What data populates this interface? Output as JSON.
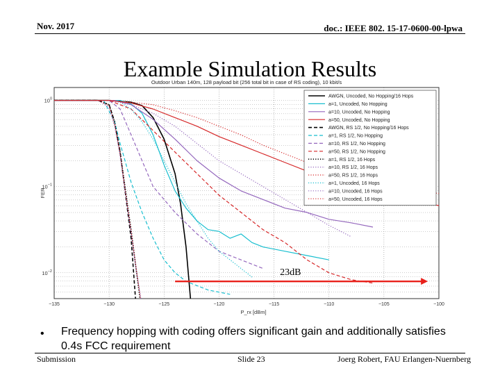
{
  "header": {
    "date": "Nov. 2017",
    "doc_id": "doc.: IEEE 802. 15-17-0600-00-lpwa"
  },
  "slide": {
    "title": "Example Simulation Results",
    "bullet": "Frequency hopping with coding offers significant gain and additionally satisfies 0.4s FCC requirement"
  },
  "footer": {
    "left": "Submission",
    "center": "Slide 23",
    "right": "Joerg Robert, FAU Erlangen-Nuernberg"
  },
  "annotation": {
    "label": "23dB",
    "from_x": -124,
    "to_x": -101
  },
  "colors": {
    "black": "#000000",
    "cyan": "#17becf",
    "purple": "#9467bd",
    "red": "#d62728",
    "annotation": "#e8201a"
  },
  "chart_data": {
    "type": "line",
    "title": "Outdoor Urban 140m, 128 payload bit (256 total bit in case of RS coding), 10 kbit/s",
    "xlabel": "P_rx [dBm]",
    "ylabel": "FER",
    "xlim": [
      -135,
      -100
    ],
    "ylog10": [
      -2.3,
      0.15
    ],
    "x_ticks": [
      -135,
      -130,
      -125,
      -120,
      -115,
      -110,
      -105,
      -100
    ],
    "y_ticks": [
      {
        "exp": 0,
        "label": "10^0"
      },
      {
        "exp": -1,
        "label": "10^-1"
      },
      {
        "exp": -2,
        "label": "10^-2"
      }
    ],
    "grid": true,
    "legend_position": "top-right",
    "series": [
      {
        "name": "AWGN, Uncoded, No Hopping/16 Hops",
        "color": "black",
        "dash": "solid",
        "points": [
          [
            -135,
            0
          ],
          [
            -130,
            0
          ],
          [
            -128,
            -0.02
          ],
          [
            -127,
            -0.06
          ],
          [
            -126,
            -0.2
          ],
          [
            -125,
            -0.45
          ],
          [
            -124,
            -0.85
          ],
          [
            -123.5,
            -1.2
          ],
          [
            -123,
            -1.7
          ],
          [
            -122.6,
            -2.3
          ]
        ]
      },
      {
        "name": "a=1, Uncoded, No Hopping",
        "color": "cyan",
        "dash": "solid",
        "points": [
          [
            -135,
            0
          ],
          [
            -129,
            0
          ],
          [
            -128,
            -0.04
          ],
          [
            -127,
            -0.15
          ],
          [
            -126,
            -0.4
          ],
          [
            -125,
            -0.75
          ],
          [
            -124,
            -1.05
          ],
          [
            -123,
            -1.25
          ],
          [
            -122,
            -1.4
          ],
          [
            -121,
            -1.5
          ],
          [
            -120,
            -1.52
          ],
          [
            -119,
            -1.6
          ],
          [
            -118,
            -1.55
          ],
          [
            -117,
            -1.65
          ],
          [
            -116,
            -1.7
          ],
          [
            -114,
            -1.75
          ],
          [
            -112,
            -1.8
          ],
          [
            -110,
            -1.85
          ]
        ]
      },
      {
        "name": "a=10, Uncoded, No Hopping",
        "color": "purple",
        "dash": "solid",
        "points": [
          [
            -135,
            0
          ],
          [
            -129.5,
            0
          ],
          [
            -128,
            -0.05
          ],
          [
            -126,
            -0.22
          ],
          [
            -124,
            -0.45
          ],
          [
            -122,
            -0.7
          ],
          [
            -120,
            -0.9
          ],
          [
            -118,
            -1.05
          ],
          [
            -116,
            -1.15
          ],
          [
            -114,
            -1.25
          ],
          [
            -112,
            -1.3
          ],
          [
            -110,
            -1.38
          ],
          [
            -108,
            -1.42
          ],
          [
            -106,
            -1.47
          ]
        ]
      },
      {
        "name": "a=50, Uncoded, No Hopping",
        "color": "red",
        "dash": "solid",
        "points": [
          [
            -135,
            0
          ],
          [
            -130,
            0
          ],
          [
            -128,
            -0.03
          ],
          [
            -126,
            -0.1
          ],
          [
            -124,
            -0.2
          ],
          [
            -122,
            -0.3
          ],
          [
            -120,
            -0.42
          ],
          [
            -118,
            -0.52
          ],
          [
            -116,
            -0.62
          ],
          [
            -114,
            -0.72
          ],
          [
            -112,
            -0.82
          ],
          [
            -110,
            -0.9
          ],
          [
            -108,
            -0.98
          ],
          [
            -106,
            -1.05
          ],
          [
            -104,
            -1.12
          ],
          [
            -102,
            -1.18
          ],
          [
            -100,
            -1.22
          ]
        ]
      },
      {
        "name": "AWGN, RS 1/2, No Hopping/16 Hops",
        "color": "black",
        "dash": "dashed",
        "points": [
          [
            -135,
            0
          ],
          [
            -131,
            0
          ],
          [
            -130,
            -0.05
          ],
          [
            -129.5,
            -0.25
          ],
          [
            -129,
            -0.6
          ],
          [
            -128.5,
            -1.1
          ],
          [
            -128,
            -1.6
          ],
          [
            -127.6,
            -2.3
          ]
        ]
      },
      {
        "name": "a=1, RS 1/2, No Hopping",
        "color": "cyan",
        "dash": "dashed",
        "points": [
          [
            -135,
            0
          ],
          [
            -130.5,
            0
          ],
          [
            -129.5,
            -0.25
          ],
          [
            -129,
            -0.5
          ],
          [
            -128,
            -0.95
          ],
          [
            -127,
            -1.3
          ],
          [
            -126,
            -1.6
          ],
          [
            -125,
            -1.85
          ],
          [
            -124,
            -2.0
          ],
          [
            -123,
            -2.1
          ],
          [
            -121,
            -2.2
          ],
          [
            -119,
            -2.25
          ]
        ]
      },
      {
        "name": "a=10, RS 1/2, No Hopping",
        "color": "purple",
        "dash": "dashed",
        "points": [
          [
            -135,
            0
          ],
          [
            -130,
            0
          ],
          [
            -129,
            -0.1
          ],
          [
            -128,
            -0.4
          ],
          [
            -127,
            -0.7
          ],
          [
            -126,
            -1.0
          ],
          [
            -124,
            -1.3
          ],
          [
            -122,
            -1.55
          ],
          [
            -120,
            -1.75
          ],
          [
            -118,
            -1.85
          ],
          [
            -116,
            -1.95
          ]
        ]
      },
      {
        "name": "a=50, RS 1/2, No Hopping",
        "color": "red",
        "dash": "dashed",
        "points": [
          [
            -135,
            0
          ],
          [
            -130,
            0
          ],
          [
            -128,
            -0.1
          ],
          [
            -126,
            -0.35
          ],
          [
            -124,
            -0.6
          ],
          [
            -122,
            -0.85
          ],
          [
            -120,
            -1.1
          ],
          [
            -118,
            -1.3
          ],
          [
            -116,
            -1.5
          ],
          [
            -114,
            -1.65
          ],
          [
            -112,
            -1.85
          ],
          [
            -110,
            -2.0
          ],
          [
            -108,
            -2.08
          ],
          [
            -106,
            -2.12
          ]
        ]
      },
      {
        "name": "a=1, RS 1/2, 16 Hops",
        "color": "black",
        "dash": "dotted",
        "points": [
          [
            -135,
            0
          ],
          [
            -131,
            0
          ],
          [
            -130,
            -0.05
          ],
          [
            -129.5,
            -0.25
          ],
          [
            -129,
            -0.6
          ],
          [
            -128.5,
            -1.05
          ],
          [
            -128,
            -1.5
          ],
          [
            -127.5,
            -2.0
          ],
          [
            -127.2,
            -2.3
          ]
        ]
      },
      {
        "name": "a=10, RS 1/2, 16 Hops",
        "color": "purple",
        "dash": "dotted",
        "points": [
          [
            -135,
            0
          ],
          [
            -131,
            0
          ],
          [
            -130,
            -0.08
          ],
          [
            -129.5,
            -0.3
          ],
          [
            -129,
            -0.65
          ],
          [
            -128.5,
            -1.1
          ],
          [
            -128,
            -1.55
          ],
          [
            -127.5,
            -2.0
          ],
          [
            -127.1,
            -2.3
          ]
        ]
      },
      {
        "name": "a=50, RS 1/2, 16 Hops",
        "color": "red",
        "dash": "dotted",
        "points": [
          [
            -135,
            0
          ],
          [
            -131,
            0
          ],
          [
            -130,
            -0.06
          ],
          [
            -129.5,
            -0.28
          ],
          [
            -129,
            -0.62
          ],
          [
            -128.5,
            -1.08
          ],
          [
            -128,
            -1.52
          ],
          [
            -127.5,
            -1.98
          ],
          [
            -127.15,
            -2.3
          ]
        ]
      },
      {
        "name": "a=1, Uncoded, 16 Hops",
        "color": "cyan",
        "dash": "dotted",
        "points": [
          [
            -135,
            0
          ],
          [
            -130,
            0
          ],
          [
            -129,
            -0.02
          ],
          [
            -128,
            -0.1
          ],
          [
            -127,
            -0.25
          ],
          [
            -126,
            -0.45
          ],
          [
            -125,
            -0.7
          ],
          [
            -124,
            -0.95
          ],
          [
            -123,
            -1.2
          ],
          [
            -122,
            -1.4
          ],
          [
            -121,
            -1.6
          ],
          [
            -120,
            -1.75
          ],
          [
            -119,
            -1.85
          ],
          [
            -118,
            -1.95
          ],
          [
            -117,
            -2.05
          ]
        ]
      },
      {
        "name": "a=10, Uncoded, 16 Hops",
        "color": "purple",
        "dash": "dotted",
        "points": [
          [
            -135,
            0
          ],
          [
            -130,
            0
          ],
          [
            -128,
            -0.05
          ],
          [
            -126,
            -0.15
          ],
          [
            -124,
            -0.3
          ],
          [
            -122,
            -0.5
          ],
          [
            -120,
            -0.7
          ],
          [
            -118,
            -0.85
          ],
          [
            -116,
            -1.0
          ],
          [
            -114,
            -1.15
          ],
          [
            -112,
            -1.3
          ],
          [
            -110,
            -1.45
          ],
          [
            -108,
            -1.58
          ]
        ]
      },
      {
        "name": "a=50, Uncoded, 16 Hops",
        "color": "red",
        "dash": "dotted",
        "points": [
          [
            -135,
            0
          ],
          [
            -130,
            0
          ],
          [
            -128,
            -0.02
          ],
          [
            -126,
            -0.05
          ],
          [
            -124,
            -0.12
          ],
          [
            -122,
            -0.2
          ],
          [
            -120,
            -0.3
          ],
          [
            -118,
            -0.4
          ],
          [
            -116,
            -0.52
          ],
          [
            -114,
            -0.62
          ],
          [
            -112,
            -0.72
          ],
          [
            -110,
            -0.8
          ],
          [
            -108,
            -0.88
          ],
          [
            -106,
            -0.95
          ],
          [
            -104,
            -1.0
          ],
          [
            -102,
            -1.05
          ],
          [
            -100,
            -1.08
          ]
        ]
      }
    ]
  }
}
